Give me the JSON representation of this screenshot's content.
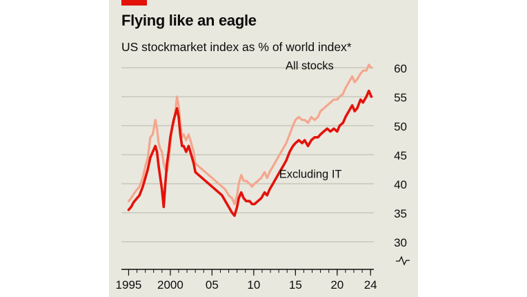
{
  "chart_data": {
    "type": "line",
    "title": "Flying like an eagle",
    "subtitle": "US stockmarket index as % of world index*",
    "xlabel": "",
    "ylabel": "",
    "x_tick_labels": [
      "1995",
      "2000",
      "05",
      "10",
      "15",
      "20",
      "24"
    ],
    "x_tick_values": [
      1995,
      2000,
      2005,
      2010,
      2015,
      2020,
      2024
    ],
    "xlim": [
      1994.3,
      2024.4
    ],
    "y_tick_labels": [
      "30",
      "35",
      "40",
      "45",
      "50",
      "55",
      "60"
    ],
    "y_tick_values": [
      30,
      35,
      40,
      45,
      50,
      55,
      60
    ],
    "ylim": [
      30,
      60
    ],
    "y_axis_side": "right",
    "y_axis_break": true,
    "grid": true,
    "colors": {
      "all_stocks": "#f4a68e",
      "excluding_it": "#e3120b",
      "background": "#e9e8de",
      "gridline": "#b8b6ab",
      "brand": "#e3120b"
    },
    "series": [
      {
        "name": "All stocks",
        "color": "#f4a68e",
        "points": [
          [
            1995.0,
            37.0
          ],
          [
            1995.3,
            37.5
          ],
          [
            1995.6,
            38.2
          ],
          [
            1996.0,
            39.0
          ],
          [
            1996.3,
            39.5
          ],
          [
            1996.7,
            41.0
          ],
          [
            1997.0,
            43.0
          ],
          [
            1997.3,
            44.5
          ],
          [
            1997.6,
            48.0
          ],
          [
            1997.9,
            48.5
          ],
          [
            1998.2,
            51.0
          ],
          [
            1998.4,
            49.5
          ],
          [
            1998.6,
            47.0
          ],
          [
            1998.8,
            46.0
          ],
          [
            1999.0,
            45.5
          ],
          [
            1999.2,
            43.5
          ],
          [
            1999.4,
            42.5
          ],
          [
            1999.6,
            42.0
          ],
          [
            1999.8,
            44.0
          ],
          [
            2000.0,
            47.0
          ],
          [
            2000.2,
            49.5
          ],
          [
            2000.4,
            50.5
          ],
          [
            2000.6,
            52.5
          ],
          [
            2000.8,
            55.0
          ],
          [
            2001.0,
            53.5
          ],
          [
            2001.2,
            50.5
          ],
          [
            2001.4,
            48.0
          ],
          [
            2001.6,
            48.5
          ],
          [
            2001.9,
            47.5
          ],
          [
            2002.2,
            48.5
          ],
          [
            2002.5,
            47.0
          ],
          [
            2002.8,
            45.5
          ],
          [
            2003.0,
            43.5
          ],
          [
            2003.4,
            43.0
          ],
          [
            2003.8,
            42.5
          ],
          [
            2004.2,
            42.0
          ],
          [
            2004.6,
            41.5
          ],
          [
            2005.0,
            41.0
          ],
          [
            2005.4,
            40.5
          ],
          [
            2005.8,
            40.0
          ],
          [
            2006.2,
            39.5
          ],
          [
            2006.6,
            39.0
          ],
          [
            2007.0,
            38.0
          ],
          [
            2007.4,
            37.5
          ],
          [
            2007.7,
            36.5
          ],
          [
            2008.0,
            38.0
          ],
          [
            2008.2,
            40.0
          ],
          [
            2008.5,
            41.5
          ],
          [
            2008.8,
            40.5
          ],
          [
            2009.1,
            40.5
          ],
          [
            2009.5,
            40.0
          ],
          [
            2009.8,
            39.5
          ],
          [
            2010.1,
            40.0
          ],
          [
            2010.5,
            40.5
          ],
          [
            2010.9,
            41.0
          ],
          [
            2011.3,
            42.0
          ],
          [
            2011.6,
            41.0
          ],
          [
            2011.9,
            42.0
          ],
          [
            2012.3,
            43.0
          ],
          [
            2012.7,
            44.0
          ],
          [
            2013.1,
            45.0
          ],
          [
            2013.5,
            46.0
          ],
          [
            2013.9,
            47.0
          ],
          [
            2014.3,
            48.5
          ],
          [
            2014.7,
            50.0
          ],
          [
            2015.0,
            51.0
          ],
          [
            2015.4,
            51.5
          ],
          [
            2015.8,
            51.0
          ],
          [
            2016.1,
            51.0
          ],
          [
            2016.5,
            50.5
          ],
          [
            2016.9,
            51.5
          ],
          [
            2017.3,
            51.0
          ],
          [
            2017.7,
            51.5
          ],
          [
            2018.0,
            52.5
          ],
          [
            2018.4,
            53.0
          ],
          [
            2018.8,
            53.5
          ],
          [
            2019.2,
            54.0
          ],
          [
            2019.6,
            54.5
          ],
          [
            2020.0,
            54.5
          ],
          [
            2020.3,
            55.0
          ],
          [
            2020.7,
            55.5
          ],
          [
            2021.0,
            56.5
          ],
          [
            2021.4,
            57.5
          ],
          [
            2021.8,
            58.5
          ],
          [
            2022.1,
            57.5
          ],
          [
            2022.4,
            58.0
          ],
          [
            2022.8,
            59.0
          ],
          [
            2023.1,
            59.5
          ],
          [
            2023.5,
            59.5
          ],
          [
            2023.8,
            60.5
          ],
          [
            2024.1,
            60.0
          ]
        ]
      },
      {
        "name": "Excluding IT",
        "color": "#e3120b",
        "points": [
          [
            1995.0,
            35.5
          ],
          [
            1995.3,
            36.0
          ],
          [
            1995.6,
            36.8
          ],
          [
            1996.0,
            37.5
          ],
          [
            1996.3,
            38.0
          ],
          [
            1996.7,
            39.5
          ],
          [
            1997.0,
            41.0
          ],
          [
            1997.3,
            42.5
          ],
          [
            1997.6,
            44.5
          ],
          [
            1997.9,
            45.5
          ],
          [
            1998.2,
            46.5
          ],
          [
            1998.4,
            45.5
          ],
          [
            1998.6,
            43.0
          ],
          [
            1998.8,
            41.0
          ],
          [
            1999.0,
            39.0
          ],
          [
            1999.2,
            36.0
          ],
          [
            1999.4,
            40.0
          ],
          [
            1999.6,
            43.5
          ],
          [
            1999.8,
            45.5
          ],
          [
            2000.0,
            48.0
          ],
          [
            2000.2,
            49.5
          ],
          [
            2000.4,
            51.0
          ],
          [
            2000.6,
            52.0
          ],
          [
            2000.8,
            53.0
          ],
          [
            2001.0,
            51.5
          ],
          [
            2001.2,
            48.5
          ],
          [
            2001.4,
            46.5
          ],
          [
            2001.6,
            46.5
          ],
          [
            2001.9,
            45.5
          ],
          [
            2002.2,
            46.5
          ],
          [
            2002.5,
            45.0
          ],
          [
            2002.8,
            43.5
          ],
          [
            2003.0,
            42.0
          ],
          [
            2003.4,
            41.5
          ],
          [
            2003.8,
            41.0
          ],
          [
            2004.2,
            40.5
          ],
          [
            2004.6,
            40.0
          ],
          [
            2005.0,
            39.5
          ],
          [
            2005.4,
            39.0
          ],
          [
            2005.8,
            38.5
          ],
          [
            2006.2,
            38.0
          ],
          [
            2006.6,
            37.0
          ],
          [
            2007.0,
            36.0
          ],
          [
            2007.4,
            35.0
          ],
          [
            2007.7,
            34.5
          ],
          [
            2008.0,
            36.0
          ],
          [
            2008.2,
            37.5
          ],
          [
            2008.5,
            38.5
          ],
          [
            2008.8,
            37.5
          ],
          [
            2009.1,
            37.0
          ],
          [
            2009.5,
            37.0
          ],
          [
            2009.8,
            36.5
          ],
          [
            2010.1,
            36.5
          ],
          [
            2010.5,
            37.0
          ],
          [
            2010.9,
            37.5
          ],
          [
            2011.3,
            38.5
          ],
          [
            2011.6,
            38.0
          ],
          [
            2011.9,
            39.0
          ],
          [
            2012.3,
            40.0
          ],
          [
            2012.7,
            41.0
          ],
          [
            2013.1,
            42.0
          ],
          [
            2013.5,
            43.0
          ],
          [
            2013.9,
            44.0
          ],
          [
            2014.3,
            45.5
          ],
          [
            2014.7,
            46.5
          ],
          [
            2015.0,
            47.0
          ],
          [
            2015.4,
            47.5
          ],
          [
            2015.8,
            47.0
          ],
          [
            2016.1,
            47.5
          ],
          [
            2016.5,
            46.5
          ],
          [
            2016.9,
            47.5
          ],
          [
            2017.3,
            48.0
          ],
          [
            2017.7,
            48.0
          ],
          [
            2018.0,
            48.5
          ],
          [
            2018.4,
            49.0
          ],
          [
            2018.8,
            49.5
          ],
          [
            2019.2,
            49.0
          ],
          [
            2019.6,
            49.5
          ],
          [
            2020.0,
            49.0
          ],
          [
            2020.3,
            50.0
          ],
          [
            2020.7,
            50.5
          ],
          [
            2021.0,
            51.5
          ],
          [
            2021.4,
            52.5
          ],
          [
            2021.8,
            53.5
          ],
          [
            2022.1,
            52.5
          ],
          [
            2022.4,
            53.0
          ],
          [
            2022.8,
            54.5
          ],
          [
            2023.1,
            54.0
          ],
          [
            2023.5,
            55.0
          ],
          [
            2023.8,
            56.0
          ],
          [
            2024.1,
            55.0
          ]
        ]
      }
    ],
    "annotations": [
      {
        "text": "All stocks",
        "series": "All stocks",
        "x": 2016.7,
        "y": 59.7
      },
      {
        "text": "Excluding IT",
        "series": "Excluding IT",
        "x": 2016.8,
        "y": 41.0
      }
    ]
  }
}
